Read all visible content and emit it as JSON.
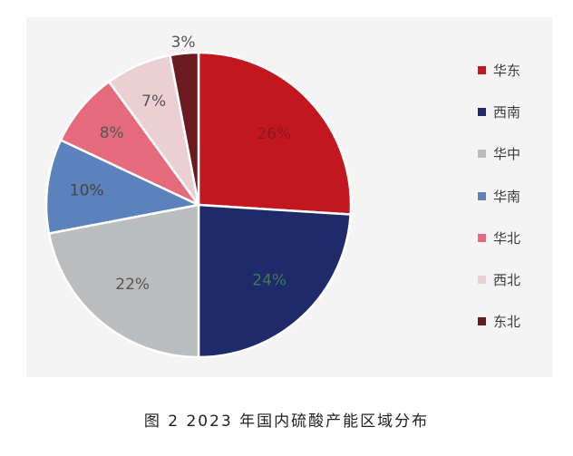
{
  "chart_data": {
    "type": "pie",
    "categories": [
      "华东",
      "西南",
      "华中",
      "华南",
      "华北",
      "西北",
      "东北"
    ],
    "values": [
      26,
      24,
      22,
      10,
      8,
      7,
      3
    ],
    "data_labels": [
      "26%",
      "24%",
      "22%",
      "10%",
      "8%",
      "7%",
      "3%"
    ],
    "colors": [
      "#c3171f",
      "#1f2a6b",
      "#bbbcbe",
      "#5b82bd",
      "#e46a7c",
      "#eccfd2",
      "#6b1a1d"
    ],
    "label_colors": [
      "#8b1a1c",
      "#3f7c55",
      "#555555",
      "#444444",
      "#555555",
      "#555555",
      "#555555"
    ],
    "start_angle_deg": 0,
    "direction": "clockwise",
    "legend_position": "right",
    "title": ""
  },
  "caption": "图 2  2023 年国内硫酸产能区域分布"
}
